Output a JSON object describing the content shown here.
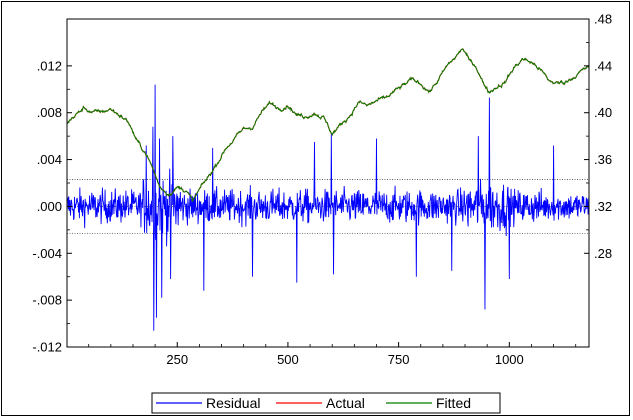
{
  "chart_data": {
    "type": "line",
    "x_range": [
      1,
      1180
    ],
    "x_ticks": [
      "250",
      "500",
      "750",
      "1000"
    ],
    "x_tick_values": [
      250,
      500,
      750,
      1000
    ],
    "left_axis": {
      "range": [
        -0.012,
        0.016
      ],
      "ticks": [
        ".012",
        ".008",
        ".004",
        ".000",
        "-.004",
        "-.008",
        "-.012"
      ],
      "tick_values": [
        0.012,
        0.008,
        0.004,
        0.0,
        -0.004,
        -0.008,
        -0.012
      ]
    },
    "right_axis": {
      "range": [
        0.2,
        0.48
      ],
      "ticks": [
        ".48",
        ".44",
        ".40",
        ".36",
        ".32",
        ".28"
      ],
      "tick_values": [
        0.48,
        0.44,
        0.4,
        0.36,
        0.32,
        0.28
      ]
    },
    "residual_bands": [
      0.0023,
      -0.0023
    ],
    "series": [
      {
        "name": "Residual",
        "color": "#0000ff",
        "axis": "left",
        "spikes": [
          {
            "x": 195,
            "y": 0.0068
          },
          {
            "x": 197,
            "y": -0.0106
          },
          {
            "x": 200,
            "y": 0.0104
          },
          {
            "x": 203,
            "y": -0.0095
          },
          {
            "x": 210,
            "y": 0.0058
          },
          {
            "x": 215,
            "y": -0.0078
          },
          {
            "x": 180,
            "y": 0.0052
          },
          {
            "x": 235,
            "y": -0.0062
          },
          {
            "x": 240,
            "y": 0.006
          },
          {
            "x": 310,
            "y": -0.0072
          },
          {
            "x": 330,
            "y": 0.005
          },
          {
            "x": 420,
            "y": -0.006
          },
          {
            "x": 520,
            "y": -0.0065
          },
          {
            "x": 560,
            "y": 0.0055
          },
          {
            "x": 598,
            "y": 0.0062
          },
          {
            "x": 603,
            "y": -0.0058
          },
          {
            "x": 700,
            "y": 0.0058
          },
          {
            "x": 790,
            "y": -0.006
          },
          {
            "x": 870,
            "y": -0.0055
          },
          {
            "x": 930,
            "y": 0.006
          },
          {
            "x": 945,
            "y": -0.0088
          },
          {
            "x": 955,
            "y": 0.0093
          },
          {
            "x": 1000,
            "y": -0.0062
          },
          {
            "x": 1100,
            "y": 0.0052
          }
        ]
      },
      {
        "name": "Actual",
        "color": "#ff0000",
        "axis": "right",
        "points": [
          [
            1,
            0.392
          ],
          [
            20,
            0.398
          ],
          [
            40,
            0.404
          ],
          [
            60,
            0.4
          ],
          [
            80,
            0.401
          ],
          [
            100,
            0.403
          ],
          [
            120,
            0.398
          ],
          [
            140,
            0.392
          ],
          [
            160,
            0.375
          ],
          [
            180,
            0.365
          ],
          [
            195,
            0.352
          ],
          [
            210,
            0.337
          ],
          [
            230,
            0.331
          ],
          [
            250,
            0.336
          ],
          [
            270,
            0.334
          ],
          [
            285,
            0.324
          ],
          [
            300,
            0.334
          ],
          [
            320,
            0.345
          ],
          [
            340,
            0.357
          ],
          [
            360,
            0.37
          ],
          [
            380,
            0.378
          ],
          [
            400,
            0.386
          ],
          [
            420,
            0.388
          ],
          [
            440,
            0.4
          ],
          [
            460,
            0.408
          ],
          [
            480,
            0.404
          ],
          [
            500,
            0.407
          ],
          [
            520,
            0.398
          ],
          [
            540,
            0.397
          ],
          [
            560,
            0.4
          ],
          [
            580,
            0.396
          ],
          [
            600,
            0.382
          ],
          [
            620,
            0.39
          ],
          [
            640,
            0.398
          ],
          [
            660,
            0.409
          ],
          [
            680,
            0.406
          ],
          [
            700,
            0.41
          ],
          [
            720,
            0.412
          ],
          [
            740,
            0.418
          ],
          [
            760,
            0.423
          ],
          [
            780,
            0.428
          ],
          [
            800,
            0.425
          ],
          [
            820,
            0.418
          ],
          [
            840,
            0.428
          ],
          [
            860,
            0.44
          ],
          [
            880,
            0.448
          ],
          [
            895,
            0.455
          ],
          [
            910,
            0.444
          ],
          [
            925,
            0.44
          ],
          [
            940,
            0.426
          ],
          [
            955,
            0.418
          ],
          [
            970,
            0.422
          ],
          [
            990,
            0.426
          ],
          [
            1010,
            0.438
          ],
          [
            1030,
            0.446
          ],
          [
            1050,
            0.443
          ],
          [
            1070,
            0.437
          ],
          [
            1090,
            0.427
          ],
          [
            1110,
            0.425
          ],
          [
            1130,
            0.427
          ],
          [
            1150,
            0.432
          ],
          [
            1170,
            0.437
          ],
          [
            1180,
            0.44
          ]
        ]
      },
      {
        "name": "Fitted",
        "color": "#008000",
        "axis": "right"
      }
    ],
    "legend": [
      "Residual",
      "Actual",
      "Fitted"
    ],
    "legend_position": "bottom-center"
  }
}
